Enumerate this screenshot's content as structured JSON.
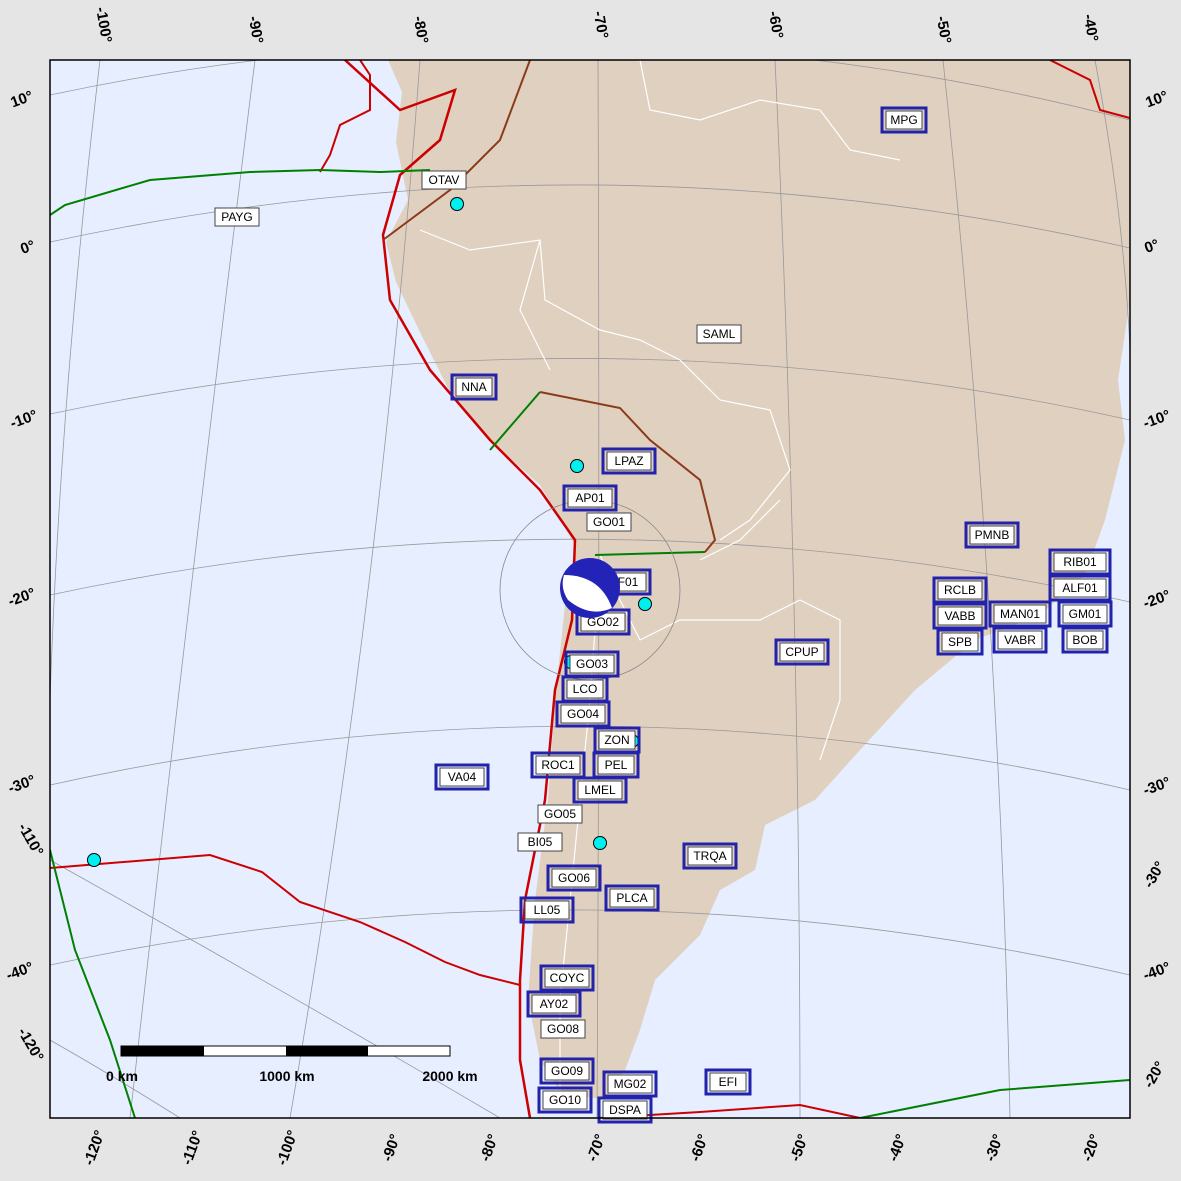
{
  "map": {
    "colors": {
      "ocean": "#e6eeff",
      "land": "#dfd0c0",
      "trench": "#cc0000",
      "ridge": "#008000",
      "transform": "#8b3a1a",
      "borders": "#ffffff",
      "station_box": "#2222aa",
      "event": "#00f0f0",
      "beachball": "#2323b8"
    },
    "lat_labels_left": [
      "10°",
      "0°",
      "-10°",
      "-20°",
      "-30°",
      "-40°"
    ],
    "lat_labels_right": [
      "10°",
      "0°",
      "-10°",
      "-20°",
      "-30°",
      "-40°"
    ],
    "lon_labels_top": [
      "-100°",
      "-90°",
      "-80°",
      "-70°",
      "-60°",
      "-50°",
      "-40°"
    ],
    "lon_labels_bottom": [
      "-120°",
      "-110°",
      "-100°",
      "-90°",
      "-80°",
      "-70°",
      "-60°",
      "-50°",
      "-40°",
      "-30°",
      "-20°"
    ],
    "lon_labels_left": [
      "-110°",
      "-120°"
    ],
    "lon_labels_right": [
      "-30°",
      "-20°"
    ],
    "stations": [
      {
        "label": "MPG",
        "boxed": true
      },
      {
        "label": "OTAV",
        "boxed": false
      },
      {
        "label": "PAYG",
        "boxed": false
      },
      {
        "label": "SAML",
        "boxed": false
      },
      {
        "label": "NNA",
        "boxed": true
      },
      {
        "label": "LPAZ",
        "boxed": true
      },
      {
        "label": "AP01",
        "boxed": true
      },
      {
        "label": "GO01",
        "boxed": false
      },
      {
        "label": "F01",
        "boxed": true
      },
      {
        "label": "GO02",
        "boxed": true
      },
      {
        "label": "GO03",
        "boxed": true
      },
      {
        "label": "LCO",
        "boxed": true
      },
      {
        "label": "GO04",
        "boxed": true
      },
      {
        "label": "ZON",
        "boxed": true
      },
      {
        "label": "ROC1",
        "boxed": true
      },
      {
        "label": "PEL",
        "boxed": true
      },
      {
        "label": "LMEL",
        "boxed": true
      },
      {
        "label": "GO05",
        "boxed": false
      },
      {
        "label": "BI05",
        "boxed": false
      },
      {
        "label": "VA04",
        "boxed": true
      },
      {
        "label": "TRQA",
        "boxed": true
      },
      {
        "label": "GO06",
        "boxed": true
      },
      {
        "label": "PLCA",
        "boxed": true
      },
      {
        "label": "LL05",
        "boxed": true
      },
      {
        "label": "COYC",
        "boxed": true
      },
      {
        "label": "AY02",
        "boxed": true
      },
      {
        "label": "GO08",
        "boxed": false
      },
      {
        "label": "GO09",
        "boxed": true
      },
      {
        "label": "GO10",
        "boxed": true
      },
      {
        "label": "MG02",
        "boxed": true
      },
      {
        "label": "DSPA",
        "boxed": true
      },
      {
        "label": "EFI",
        "boxed": true
      },
      {
        "label": "CPUP",
        "boxed": true
      },
      {
        "label": "PMNB",
        "boxed": true
      },
      {
        "label": "RIB01",
        "boxed": true
      },
      {
        "label": "ALF01",
        "boxed": true
      },
      {
        "label": "RCLB",
        "boxed": true
      },
      {
        "label": "SPB",
        "boxed": true
      },
      {
        "label": "VABB",
        "boxed": true
      },
      {
        "label": "MAN01",
        "boxed": true
      },
      {
        "label": "VABR",
        "boxed": true
      },
      {
        "label": "BOB",
        "boxed": true
      },
      {
        "label": "GM01",
        "boxed": true
      }
    ],
    "scale_bar": {
      "labels": [
        "0 km",
        "1000 km",
        "2000 km"
      ]
    }
  }
}
